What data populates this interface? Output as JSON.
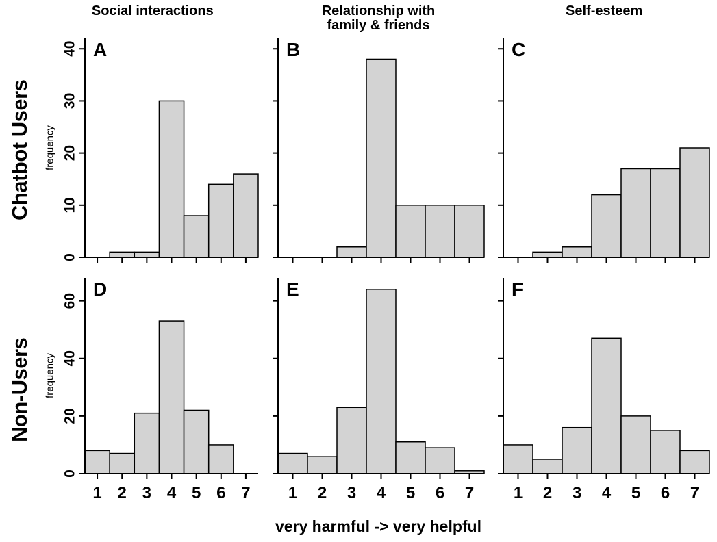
{
  "row_labels": [
    "Chatbot Users",
    "Non-Users"
  ],
  "col_titles": [
    "Social interactions",
    "Relationship with\nfamily & friends",
    "Self-esteem"
  ],
  "y_axis_label": "frequency",
  "x_axis": {
    "ticks": [
      1,
      2,
      3,
      4,
      5,
      6,
      7
    ],
    "caption": "very harmful -> very helpful"
  },
  "colors": {
    "bar_fill": "#d3d3d3",
    "bar_stroke": "#000000",
    "axis": "#000000"
  },
  "chart_data": [
    {
      "type": "bar",
      "panel": "A",
      "row": "Chatbot Users",
      "title": "Social interactions",
      "categories": [
        1,
        2,
        3,
        4,
        5,
        6,
        7
      ],
      "values": [
        0,
        1,
        1,
        30,
        8,
        14,
        16
      ],
      "xlabel": "very harmful -> very helpful",
      "ylabel": "frequency",
      "ylim": [
        0,
        40
      ],
      "yticks": [
        0,
        10,
        20,
        30,
        40
      ],
      "yscale_max": 42,
      "show_y_labels": true,
      "show_x_labels": false,
      "grid": false,
      "legend": "none"
    },
    {
      "type": "bar",
      "panel": "B",
      "row": "Chatbot Users",
      "title": "Relationship with family & friends",
      "categories": [
        1,
        2,
        3,
        4,
        5,
        6,
        7
      ],
      "values": [
        0,
        0,
        2,
        38,
        10,
        10,
        10
      ],
      "xlabel": "very harmful -> very helpful",
      "ylabel": "frequency",
      "ylim": [
        0,
        40
      ],
      "yticks": [
        0,
        10,
        20,
        30,
        40
      ],
      "yscale_max": 42,
      "show_y_labels": false,
      "show_x_labels": false,
      "grid": false,
      "legend": "none"
    },
    {
      "type": "bar",
      "panel": "C",
      "row": "Chatbot Users",
      "title": "Self-esteem",
      "categories": [
        1,
        2,
        3,
        4,
        5,
        6,
        7
      ],
      "values": [
        0,
        1,
        2,
        12,
        17,
        17,
        21
      ],
      "xlabel": "very harmful -> very helpful",
      "ylabel": "frequency",
      "ylim": [
        0,
        40
      ],
      "yticks": [
        0,
        10,
        20,
        30,
        40
      ],
      "yscale_max": 42,
      "show_y_labels": false,
      "show_x_labels": false,
      "grid": false,
      "legend": "none"
    },
    {
      "type": "bar",
      "panel": "D",
      "row": "Non-Users",
      "title": "Social interactions",
      "categories": [
        1,
        2,
        3,
        4,
        5,
        6,
        7
      ],
      "values": [
        8,
        7,
        21,
        53,
        22,
        10,
        0
      ],
      "xlabel": "very harmful -> very helpful",
      "ylabel": "frequency",
      "ylim": [
        0,
        60
      ],
      "yticks": [
        0,
        20,
        40,
        60
      ],
      "yscale_max": 68,
      "show_y_labels": true,
      "show_x_labels": true,
      "grid": false,
      "legend": "none"
    },
    {
      "type": "bar",
      "panel": "E",
      "row": "Non-Users",
      "title": "Relationship with family & friends",
      "categories": [
        1,
        2,
        3,
        4,
        5,
        6,
        7
      ],
      "values": [
        7,
        6,
        23,
        64,
        11,
        9,
        1
      ],
      "xlabel": "very harmful -> very helpful",
      "ylabel": "frequency",
      "ylim": [
        0,
        60
      ],
      "yticks": [
        0,
        20,
        40,
        60
      ],
      "yscale_max": 68,
      "show_y_labels": false,
      "show_x_labels": true,
      "grid": false,
      "legend": "none"
    },
    {
      "type": "bar",
      "panel": "F",
      "row": "Non-Users",
      "title": "Self-esteem",
      "categories": [
        1,
        2,
        3,
        4,
        5,
        6,
        7
      ],
      "values": [
        10,
        5,
        16,
        47,
        20,
        15,
        8
      ],
      "xlabel": "very harmful -> very helpful",
      "ylabel": "frequency",
      "ylim": [
        0,
        60
      ],
      "yticks": [
        0,
        20,
        40,
        60
      ],
      "yscale_max": 68,
      "show_y_labels": false,
      "show_x_labels": true,
      "grid": false,
      "legend": "none"
    }
  ]
}
